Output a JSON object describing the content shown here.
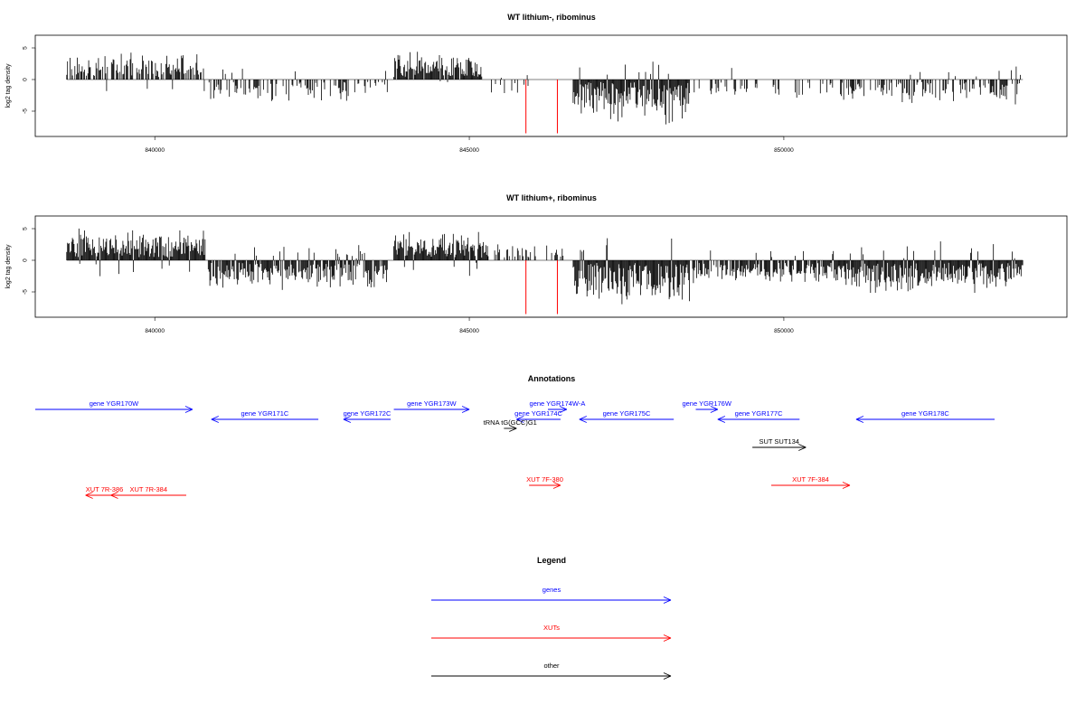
{
  "chart_data": [
    {
      "type": "bar",
      "title": "WT lithium-, ribominus",
      "ylabel": "log2 tag density",
      "xlim": [
        838100,
        854500
      ],
      "ylim": [
        -9,
        7
      ],
      "xticks": [
        840000,
        845000,
        850000
      ],
      "yticks": [
        5,
        0,
        -5
      ],
      "segments": [
        {
          "from": 838600,
          "to": 840800,
          "sign": 1,
          "scale": 4.0,
          "density": 0.6
        },
        {
          "from": 840850,
          "to": 843700,
          "sign": -1,
          "scale": 3.5,
          "density": 0.45
        },
        {
          "from": 843800,
          "to": 845200,
          "sign": 1,
          "scale": 4.5,
          "density": 0.9
        },
        {
          "from": 845300,
          "to": 846000,
          "sign": -1,
          "scale": 2.5,
          "density": 0.2
        },
        {
          "from": 846650,
          "to": 848500,
          "sign": -1,
          "scale": 7.0,
          "density": 1.0
        },
        {
          "from": 848550,
          "to": 850900,
          "sign": -1,
          "scale": 3.0,
          "density": 0.35
        },
        {
          "from": 850900,
          "to": 853800,
          "sign": -1,
          "scale": 3.8,
          "density": 0.55
        }
      ],
      "red_lines": [
        845900,
        846400
      ],
      "red_depth": -8.5
    },
    {
      "type": "bar",
      "title": "WT lithium+, ribominus",
      "ylabel": "log2 tag density",
      "xlim": [
        838100,
        854500
      ],
      "ylim": [
        -9,
        7
      ],
      "xticks": [
        840000,
        845000,
        850000
      ],
      "yticks": [
        5,
        0,
        -5
      ],
      "segments": [
        {
          "from": 838600,
          "to": 840800,
          "sign": 1,
          "scale": 4.8,
          "density": 1.0
        },
        {
          "from": 840850,
          "to": 843700,
          "sign": -1,
          "scale": 4.5,
          "density": 0.9
        },
        {
          "from": 843800,
          "to": 845300,
          "sign": 1,
          "scale": 4.5,
          "density": 1.0
        },
        {
          "from": 845300,
          "to": 846600,
          "sign": 1,
          "scale": 2.5,
          "density": 0.35
        },
        {
          "from": 846650,
          "to": 848500,
          "sign": -1,
          "scale": 7.0,
          "density": 1.0
        },
        {
          "from": 848550,
          "to": 850900,
          "sign": -1,
          "scale": 3.5,
          "density": 0.8
        },
        {
          "from": 850900,
          "to": 853800,
          "sign": -1,
          "scale": 5.0,
          "density": 1.0
        }
      ],
      "red_lines": [
        845900,
        846400
      ],
      "red_depth": -8.5
    }
  ],
  "annotations": {
    "title": "Annotations",
    "features": [
      {
        "label": "gene YGR170W",
        "kind": "genes",
        "from": 838100,
        "to": 840600,
        "strand": "+",
        "row": 0
      },
      {
        "label": "gene YGR171C",
        "kind": "genes",
        "from": 840900,
        "to": 842600,
        "strand": "-",
        "row": 1
      },
      {
        "label": "gene YGR172C",
        "kind": "genes",
        "from": 843000,
        "to": 843750,
        "strand": "-",
        "row": 1
      },
      {
        "label": "gene YGR173W",
        "kind": "genes",
        "from": 843800,
        "to": 845000,
        "strand": "+",
        "row": 0
      },
      {
        "label": "gene YGR174C",
        "kind": "genes",
        "from": 845750,
        "to": 846450,
        "strand": "-",
        "row": 1
      },
      {
        "label": "gene YGR174W-A",
        "kind": "genes",
        "from": 846250,
        "to": 846550,
        "strand": "+",
        "row": 0
      },
      {
        "label": "gene YGR175C",
        "kind": "genes",
        "from": 846750,
        "to": 848250,
        "strand": "-",
        "row": 1
      },
      {
        "label": "gene YGR176W",
        "kind": "genes",
        "from": 848600,
        "to": 848950,
        "strand": "+",
        "row": 0
      },
      {
        "label": "gene YGR177C",
        "kind": "genes",
        "from": 848950,
        "to": 850250,
        "strand": "-",
        "row": 1
      },
      {
        "label": "gene YGR178C",
        "kind": "genes",
        "from": 851150,
        "to": 853350,
        "strand": "-",
        "row": 1
      },
      {
        "label": "tRNA tG(GCC)G1",
        "kind": "other",
        "from": 845550,
        "to": 845750,
        "strand": "+",
        "row": 2
      },
      {
        "label": "SUT SUT134",
        "kind": "other",
        "from": 849500,
        "to": 850350,
        "strand": "+",
        "row": 3
      },
      {
        "label": "XUT 7R-386",
        "kind": "XUTs",
        "from": 838900,
        "to": 839500,
        "strand": "-",
        "row": 5
      },
      {
        "label": "XUT 7R-384",
        "kind": "XUTs",
        "from": 839300,
        "to": 840500,
        "strand": "-",
        "row": 5
      },
      {
        "label": "XUT 7F-380",
        "kind": "XUTs",
        "from": 845950,
        "to": 846450,
        "strand": "+",
        "row": 4
      },
      {
        "label": "XUT 7F-384",
        "kind": "XUTs",
        "from": 849800,
        "to": 851050,
        "strand": "+",
        "row": 4
      }
    ]
  },
  "legend": {
    "title": "Legend",
    "items": [
      {
        "label": "genes",
        "color": "#0000ff"
      },
      {
        "label": "XUTs",
        "color": "#ff0000"
      },
      {
        "label": "other",
        "color": "#000000"
      }
    ]
  },
  "colors": {
    "genes": "#0000ff",
    "XUTs": "#ff0000",
    "other": "#000000",
    "bars": "#000000",
    "marker": "#ff0000"
  }
}
